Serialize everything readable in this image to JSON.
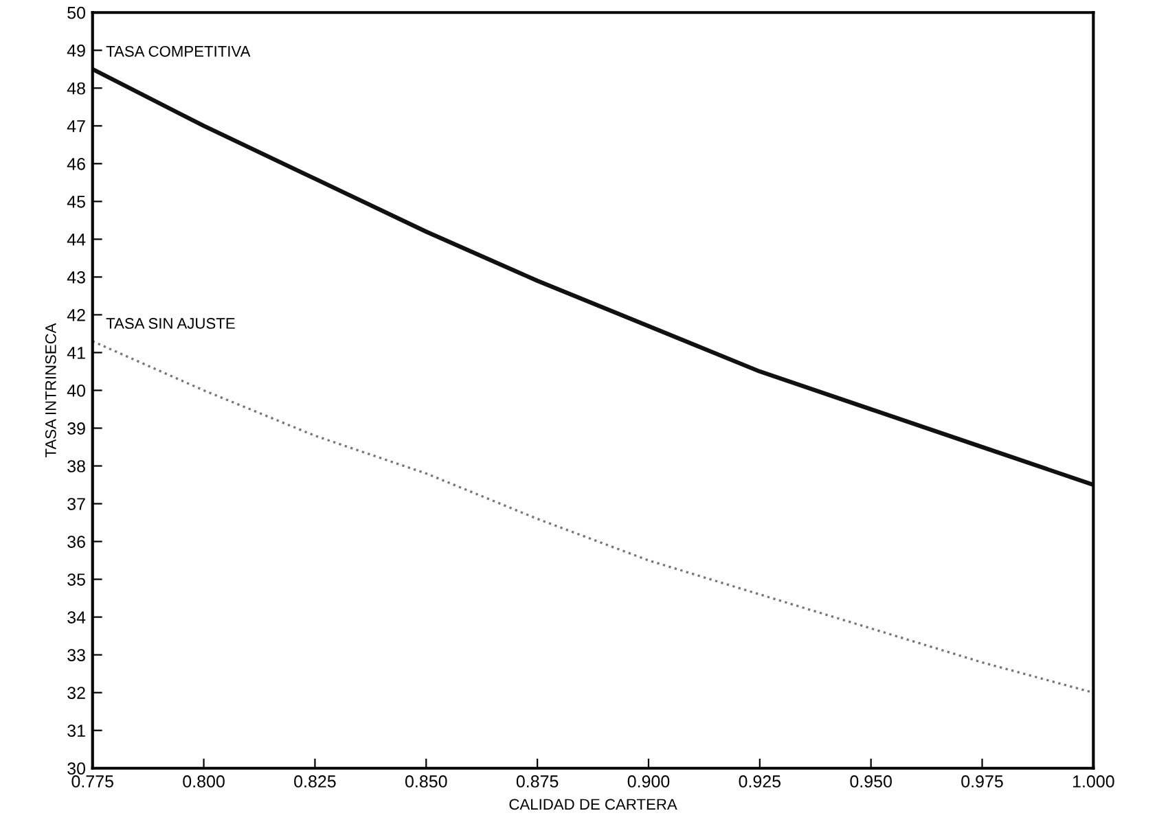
{
  "chart_data": {
    "type": "line",
    "xlabel": "CALIDAD DE CARTERA",
    "ylabel": "TASA INTRINSECA",
    "x": [
      0.775,
      0.8,
      0.825,
      0.85,
      0.875,
      0.9,
      0.925,
      0.95,
      0.975,
      1.0
    ],
    "series": [
      {
        "name": "TASA COMPETITIVA",
        "color": "#111111",
        "line_style": "solid",
        "values": [
          48.5,
          47.0,
          45.6,
          44.2,
          42.9,
          41.7,
          40.5,
          39.5,
          38.5,
          37.5
        ]
      },
      {
        "name": "TASA SIN AJUSTE",
        "color": "#777777",
        "line_style": "dotted",
        "values": [
          41.3,
          40.0,
          38.8,
          37.8,
          36.6,
          35.5,
          34.6,
          33.7,
          32.8,
          32.0
        ]
      }
    ],
    "xlim": [
      0.775,
      1.0
    ],
    "xticks": [
      {
        "value": 0.775,
        "label": "0.775"
      },
      {
        "value": 0.8,
        "label": "0.800"
      },
      {
        "value": 0.825,
        "label": "0.825"
      },
      {
        "value": 0.85,
        "label": "0.850"
      },
      {
        "value": 0.875,
        "label": "0.875"
      },
      {
        "value": 0.9,
        "label": "0.900"
      },
      {
        "value": 0.925,
        "label": "0.925"
      },
      {
        "value": 0.95,
        "label": "0.950"
      },
      {
        "value": 0.975,
        "label": "0.975"
      },
      {
        "value": 1.0,
        "label": "1.000"
      }
    ],
    "ylim": [
      30,
      50
    ],
    "yticks": [
      30,
      31,
      32,
      33,
      34,
      35,
      36,
      37,
      38,
      39,
      40,
      41,
      42,
      43,
      44,
      45,
      46,
      47,
      48,
      49,
      50
    ],
    "grid": false,
    "legend": false,
    "marker": "none"
  }
}
